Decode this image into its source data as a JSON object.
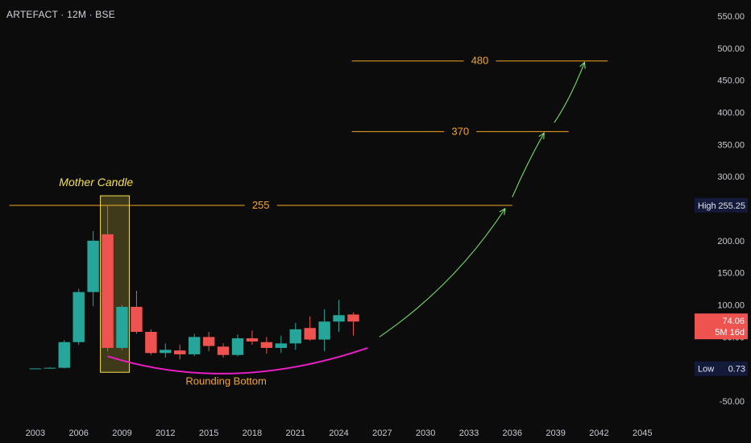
{
  "header": {
    "symbol_title": "ARTEFACT · 12M · BSE"
  },
  "colors": {
    "background": "#0c0c0c",
    "up": "#26a69a",
    "down": "#ef5350",
    "level": "#f5a623",
    "projection": "#7cf36b",
    "rounding": "#e91ec6",
    "highlight": "#f4e04d"
  },
  "chart_data": {
    "type": "candlestick",
    "title": "",
    "x_ticks": [
      "2003",
      "2006",
      "2009",
      "2012",
      "2015",
      "2018",
      "2021",
      "2024",
      "2027",
      "2030",
      "2033",
      "2036",
      "2039",
      "2042",
      "2045"
    ],
    "y_ticks": [
      "550.00",
      "500.00",
      "450.00",
      "400.00",
      "350.00",
      "300.00",
      "250.00",
      "200.00",
      "150.00",
      "100.00",
      "50.00",
      "-50.00"
    ],
    "ylim": [
      -75,
      575
    ],
    "xlim": [
      2001.0,
      2048.5
    ],
    "candles": [
      {
        "year": 2003,
        "open": 0.8,
        "high": 1.2,
        "low": 0.73,
        "close": 1.0
      },
      {
        "year": 2004,
        "open": 1.0,
        "high": 3,
        "low": 0.8,
        "close": 2
      },
      {
        "year": 2005,
        "open": 2,
        "high": 45,
        "low": 1,
        "close": 42
      },
      {
        "year": 2006,
        "open": 42,
        "high": 125,
        "low": 38,
        "close": 120
      },
      {
        "year": 2007,
        "open": 120,
        "high": 215,
        "low": 98,
        "close": 200
      },
      {
        "year": 2008,
        "open": 210,
        "high": 255.25,
        "low": 28,
        "close": 33
      },
      {
        "year": 2009,
        "open": 33,
        "high": 100,
        "low": 30,
        "close": 97
      },
      {
        "year": 2010,
        "open": 97,
        "high": 122,
        "low": 55,
        "close": 58
      },
      {
        "year": 2011,
        "open": 58,
        "high": 62,
        "low": 22,
        "close": 25
      },
      {
        "year": 2012,
        "open": 25,
        "high": 40,
        "low": 18,
        "close": 30
      },
      {
        "year": 2013,
        "open": 29,
        "high": 38,
        "low": 15,
        "close": 23
      },
      {
        "year": 2014,
        "open": 23,
        "high": 55,
        "low": 20,
        "close": 50
      },
      {
        "year": 2015,
        "open": 50,
        "high": 58,
        "low": 28,
        "close": 36
      },
      {
        "year": 2016,
        "open": 35,
        "high": 40,
        "low": 18,
        "close": 22
      },
      {
        "year": 2017,
        "open": 22,
        "high": 54,
        "low": 20,
        "close": 48
      },
      {
        "year": 2018,
        "open": 48,
        "high": 60,
        "low": 38,
        "close": 43
      },
      {
        "year": 2019,
        "open": 42,
        "high": 50,
        "low": 24,
        "close": 33
      },
      {
        "year": 2020,
        "open": 33,
        "high": 52,
        "low": 25,
        "close": 40
      },
      {
        "year": 2021,
        "open": 40,
        "high": 72,
        "low": 30,
        "close": 62
      },
      {
        "year": 2022,
        "open": 64,
        "high": 82,
        "low": 44,
        "close": 46
      },
      {
        "year": 2023,
        "open": 46,
        "high": 93,
        "low": 28,
        "close": 74
      },
      {
        "year": 2024,
        "open": 74,
        "high": 108,
        "low": 58,
        "close": 84
      },
      {
        "year": 2025,
        "open": 85,
        "high": 88,
        "low": 52,
        "close": 74.06
      }
    ],
    "levels": [
      {
        "value": 255,
        "label": "255",
        "x_start": 2001.2,
        "x_end": 2036.0
      },
      {
        "value": 370,
        "label": "370",
        "x_start": 2024.9,
        "x_end": 2039.9
      },
      {
        "value": 480,
        "label": "480",
        "x_start": 2024.9,
        "x_end": 2042.6
      }
    ],
    "annotations": {
      "mother_candle": "Mother Candle",
      "rounding_bottom": "Rounding Bottom"
    },
    "mother_box": {
      "x_start": 2007.5,
      "x_end": 2009.5,
      "y_top": 270,
      "y_bottom": -5
    },
    "rounding_curve": {
      "start": [
        2008.0,
        20
      ],
      "control": [
        2016.5,
        -40
      ],
      "end": [
        2026.0,
        33
      ]
    },
    "projection_arrows": [
      {
        "start": [
          2026.8,
          50
        ],
        "control": [
          2032.0,
          130
        ],
        "end": [
          2035.5,
          250
        ]
      },
      {
        "start": [
          2036.0,
          268
        ],
        "control": [
          2037.0,
          320
        ],
        "end": [
          2038.2,
          368
        ]
      },
      {
        "start": [
          2038.9,
          384
        ],
        "control": [
          2040.0,
          420
        ],
        "end": [
          2041.0,
          478
        ]
      }
    ],
    "price_tags": [
      {
        "label": "High",
        "value": "255.25",
        "price": 255.25,
        "bg": "#131a3a",
        "fg": "#e0e3eb"
      },
      {
        "label": "",
        "value": "74.06",
        "sub": "5M 16d",
        "price": 74.06,
        "bg": "#ef5350",
        "fg": "#ffffff"
      },
      {
        "label": "Low",
        "value": "0.73",
        "price": 0.73,
        "bg": "#131a3a",
        "fg": "#e0e3eb"
      }
    ]
  }
}
